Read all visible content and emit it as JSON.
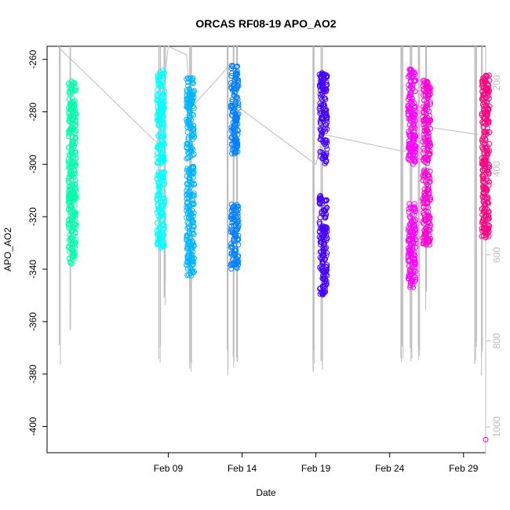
{
  "chart_data": {
    "type": "scatter",
    "title": "ORCAS RF08-19 APO_AO2",
    "xlabel": "Date",
    "ylabel": "APO_AO2",
    "x_ticks": [
      "Feb 09",
      "Feb 14",
      "Feb 19",
      "Feb 24",
      "Feb 29"
    ],
    "y_ticks": [
      -260,
      -280,
      -300,
      -320,
      -340,
      -360,
      -380,
      -400
    ],
    "y2_ticks": [
      200,
      400,
      600,
      800,
      1000
    ],
    "xlim": [
      "2016-01-31 19:00",
      "2016-03-01 12:00"
    ],
    "ylim": [
      -410,
      -255
    ],
    "y2lim": [
      1060,
      115
    ],
    "grid": false,
    "legend": "none",
    "series": [
      {
        "date": "2016-02-02",
        "color": "#00ffa8",
        "clusters": [
          [
            -268,
            -314
          ],
          [
            -310,
            -338
          ]
        ]
      },
      {
        "date": "2016-02-08",
        "color": "#00ffff",
        "clusters": [
          [
            -264,
            -300
          ],
          [
            -302,
            -332
          ]
        ]
      },
      {
        "date": "2016-02-10",
        "color": "#00b5ff",
        "clusters": [
          [
            -267,
            -298
          ],
          [
            -300,
            -343
          ]
        ]
      },
      {
        "date": "2016-02-13",
        "color": "#0080ff",
        "clusters": [
          [
            -262,
            -296
          ],
          [
            -315,
            -340
          ]
        ]
      },
      {
        "date": "2016-02-19",
        "color": "#4400ff",
        "clusters": [
          [
            -265,
            -300
          ],
          [
            -312,
            -350
          ]
        ]
      },
      {
        "date": "2016-02-25",
        "color": "#ff00ff",
        "clusters": [
          [
            -263,
            -300
          ],
          [
            -315,
            -347
          ]
        ]
      },
      {
        "date": "2016-02-26",
        "color": "#ff00d4",
        "clusters": [
          [
            -268,
            -300
          ],
          [
            -302,
            -331
          ]
        ]
      },
      {
        "date": "2016-03-01",
        "color": "#ff0080",
        "clusters": [
          [
            -266,
            -310
          ],
          [
            -310,
            -328
          ]
        ],
        "outliers": [
          -405
        ]
      }
    ],
    "altitude_trace": {
      "color": "#bdbdbd",
      "axis": "right",
      "path": [
        [
          "2016-02-01 12:00",
          115
        ],
        [
          "2016-02-08 06:00",
          340
        ],
        [
          "2016-02-09 00:00",
          115
        ],
        [
          "2016-02-10 06:00",
          135
        ],
        [
          "2016-02-10 12:00",
          260
        ],
        [
          "2016-02-13 00:00",
          165
        ],
        [
          "2016-02-13 12:00",
          250
        ],
        [
          "2016-02-19 00:00",
          390
        ],
        [
          "2016-02-19 12:00",
          320
        ],
        [
          "2016-02-25 00:00",
          360
        ],
        [
          "2016-02-26 00:00",
          300
        ],
        [
          "2016-03-01 00:00",
          320
        ]
      ],
      "drops": [
        [
          "2016-02-01 16:00",
          880
        ],
        [
          "2016-02-02 08:00",
          790
        ],
        [
          "2016-02-08 10:00",
          880
        ],
        [
          "2016-02-08 18:00",
          730
        ],
        [
          "2016-02-10 12:00",
          890
        ],
        [
          "2016-02-13 00:00",
          890
        ],
        [
          "2016-02-13 10:00",
          870
        ],
        [
          "2016-02-13 16:00",
          850
        ],
        [
          "2016-02-18 20:00",
          890
        ],
        [
          "2016-02-19 10:00",
          890
        ],
        [
          "2016-02-24 20:00",
          890
        ],
        [
          "2016-02-25 10:00",
          880
        ],
        [
          "2016-02-26 00:00",
          890
        ],
        [
          "2016-02-26 12:00",
          750
        ],
        [
          "2016-02-29 20:00",
          880
        ],
        [
          "2016-03-01 06:00",
          880
        ]
      ]
    }
  }
}
